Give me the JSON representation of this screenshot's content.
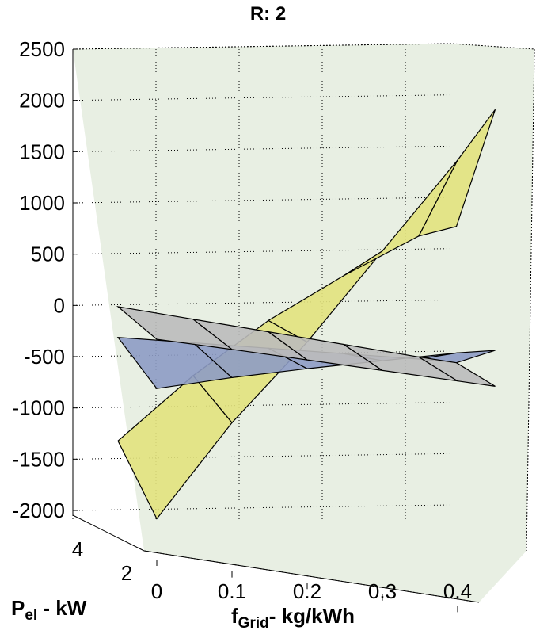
{
  "chart_data": {
    "type": "surface",
    "title": "R: 2",
    "xlabel": {
      "main": "f",
      "sub": "Grid",
      "rest": "- kg/kWh"
    },
    "ylabel": {
      "main": "P",
      "sub": "el",
      "rest": " - kW"
    },
    "zlim": [
      -2000,
      2500
    ],
    "z_ticks": [
      "2500",
      "2000",
      "1500",
      "1000",
      "500",
      "0",
      "-500",
      "-1000",
      "-1500",
      "-2000"
    ],
    "x_ticks": [
      "0",
      "0.1",
      "0.2",
      "0.3",
      "0.4"
    ],
    "y_ticks": [
      "4",
      "2"
    ],
    "grid": true,
    "series": [
      {
        "color": "#e2e27d",
        "x": [
          0,
          0.1,
          0.2,
          0.3,
          0.4,
          0.45
        ],
        "P_el": [
          2,
          4
        ],
        "values": [
          [
            -2050,
            -1000,
            -100,
            900,
            1900,
            2450
          ],
          [
            -1450,
            -700,
            -50,
            500,
            1000,
            1150
          ]
        ]
      },
      {
        "color": "#8d9bc4",
        "x": [
          0,
          0.1,
          0.2,
          0.3,
          0.4,
          0.45
        ],
        "P_el": [
          2,
          4
        ],
        "values": [
          [
            -780,
            -560,
            -360,
            -170,
            20,
            100
          ],
          [
            -440,
            -380,
            -320,
            -260,
            -200,
            -180
          ]
        ]
      },
      {
        "color": "#bbbbbb",
        "x": [
          0,
          0.1,
          0.2,
          0.3,
          0.4,
          0.45
        ],
        "P_el": [
          2,
          4
        ],
        "values": [
          [
            -300,
            -285,
            -275,
            -265,
            -255,
            -250
          ],
          [
            -140,
            -150,
            -160,
            -170,
            -180,
            -180
          ]
        ]
      }
    ]
  }
}
